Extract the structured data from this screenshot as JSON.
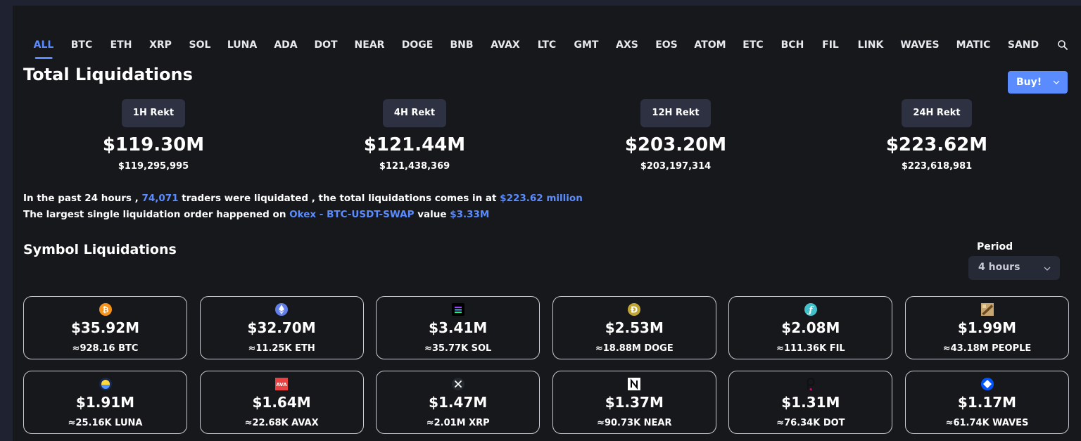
{
  "tabs": [
    "ALL",
    "BTC",
    "ETH",
    "XRP",
    "SOL",
    "LUNA",
    "ADA",
    "DOT",
    "NEAR",
    "DOGE",
    "BNB",
    "AVAX",
    "LTC",
    "GMT",
    "AXS",
    "EOS",
    "ATOM",
    "ETC",
    "BCH",
    "FIL",
    "LINK",
    "WAVES",
    "MATIC",
    "SAND"
  ],
  "active_tab": "ALL",
  "title": "Total Liquidations",
  "buy_button": "Buy!",
  "stats": [
    {
      "label": "1H Rekt",
      "value": "$119.30M",
      "exact": "$119,295,995"
    },
    {
      "label": "4H Rekt",
      "value": "$121.44M",
      "exact": "$121,438,369"
    },
    {
      "label": "12H Rekt",
      "value": "$203.20M",
      "exact": "$203,197,314"
    },
    {
      "label": "24H Rekt",
      "value": "$223.62M",
      "exact": "$223,618,981"
    }
  ],
  "summary": {
    "line1_a": "In the past 24 hours ,",
    "traders": "74,071",
    "line1_b": "traders were liquidated , the total liquidations comes in at",
    "total": "$223.62 million",
    "line2_a": "The largest single liquidation order happened on",
    "exchange": "Okex - BTC-USDT-SWAP",
    "line2_b": "value",
    "value": "$3.33M"
  },
  "symbol_title": "Symbol Liquidations",
  "period": {
    "label": "Period",
    "value": "4 hours"
  },
  "cards": [
    {
      "amount": "$35.92M",
      "qty": "≈928.16 BTC",
      "icon": "btc",
      "color": "#f7931a"
    },
    {
      "amount": "$32.70M",
      "qty": "≈11.25K ETH",
      "icon": "eth",
      "color": "#627eea"
    },
    {
      "amount": "$3.41M",
      "qty": "≈35.77K SOL",
      "icon": "sol",
      "color": "#000000"
    },
    {
      "amount": "$2.53M",
      "qty": "≈18.88M DOGE",
      "icon": "doge",
      "color": "#c2a633"
    },
    {
      "amount": "$2.08M",
      "qty": "≈111.36K FIL",
      "icon": "fil",
      "color": "#42c1ca"
    },
    {
      "amount": "$1.99M",
      "qty": "≈43.18M PEOPLE",
      "icon": "people",
      "color": "#c8a670"
    },
    {
      "amount": "$1.91M",
      "qty": "≈25.16K LUNA",
      "icon": "luna",
      "color": "#172852"
    },
    {
      "amount": "$1.64M",
      "qty": "≈22.68K AVAX",
      "icon": "avax",
      "color": "#e84142"
    },
    {
      "amount": "$1.47M",
      "qty": "≈2.01M XRP",
      "icon": "xrp",
      "color": "#23292f"
    },
    {
      "amount": "$1.37M",
      "qty": "≈90.73K NEAR",
      "icon": "near",
      "color": "#ffffff"
    },
    {
      "amount": "$1.31M",
      "qty": "≈76.34K DOT",
      "icon": "dot",
      "color": "#e6007a"
    },
    {
      "amount": "$1.17M",
      "qty": "≈61.74K WAVES",
      "icon": "waves",
      "color": "#0055ff"
    }
  ]
}
